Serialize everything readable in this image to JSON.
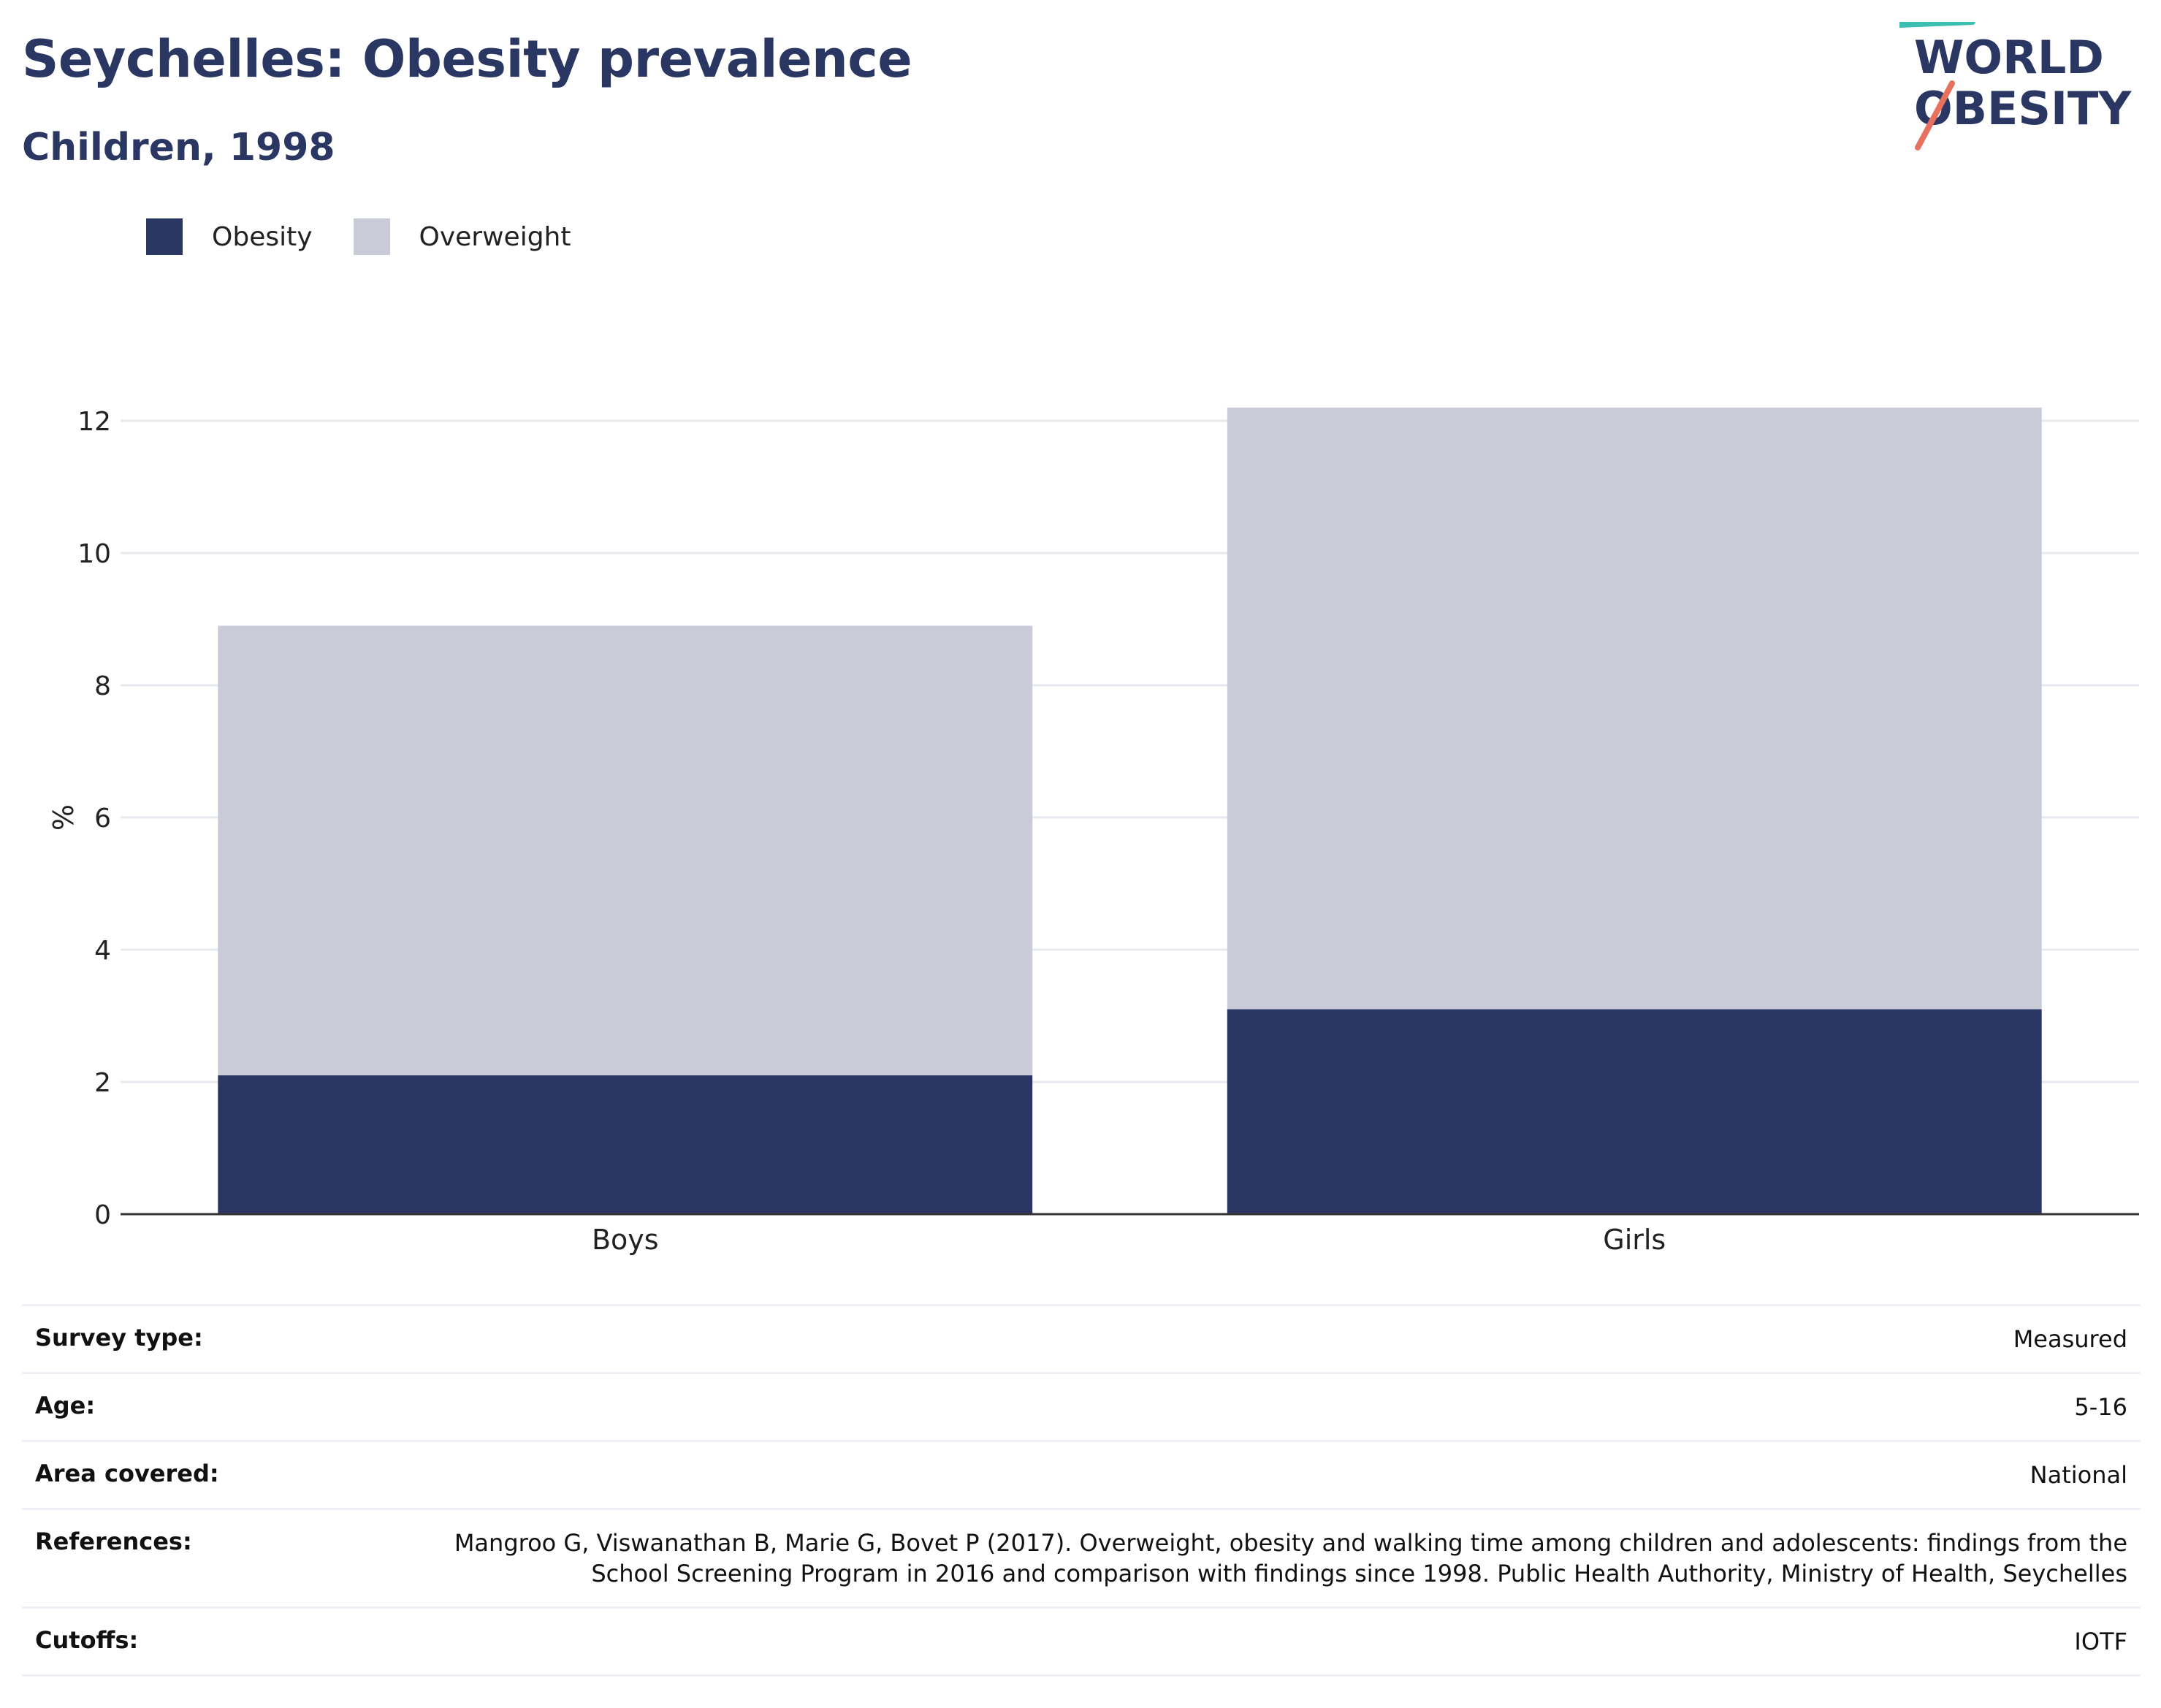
{
  "header": {
    "title": "Seychelles: Obesity prevalence",
    "subtitle": "Children, 1998",
    "logo_line1": "WORLD",
    "logo_line2": "OBESITY"
  },
  "legend": [
    {
      "label": "Obesity",
      "color": "#2a3763"
    },
    {
      "label": "Overweight",
      "color": "#c9ccd8"
    }
  ],
  "chart_data": {
    "type": "bar",
    "stacked": true,
    "categories": [
      "Boys",
      "Girls"
    ],
    "series": [
      {
        "name": "Obesity",
        "values": [
          2.1,
          3.1
        ],
        "color": "#2a3763"
      },
      {
        "name": "Overweight",
        "values": [
          6.8,
          9.1
        ],
        "color": "#c9ccd8"
      }
    ],
    "ylabel": "%",
    "xlabel": "",
    "ylim": [
      0,
      12.5
    ],
    "yticks": [
      0,
      2,
      4,
      6,
      8,
      10,
      12
    ],
    "grid": true,
    "legend_position": "top-left"
  },
  "info": [
    {
      "label": "Survey type:",
      "value": "Measured"
    },
    {
      "label": "Age:",
      "value": "5-16"
    },
    {
      "label": "Area covered:",
      "value": "National"
    },
    {
      "label": "References:",
      "value": "Mangroo G, Viswanathan B, Marie G, Bovet P (2017). Overweight, obesity and walking time among children and adolescents: findings from the School Screening Program in 2016 and comparison with findings since 1998. Public Health Authority, Ministry of Health, Seychelles"
    },
    {
      "label": "Cutoffs:",
      "value": "IOTF"
    }
  ]
}
